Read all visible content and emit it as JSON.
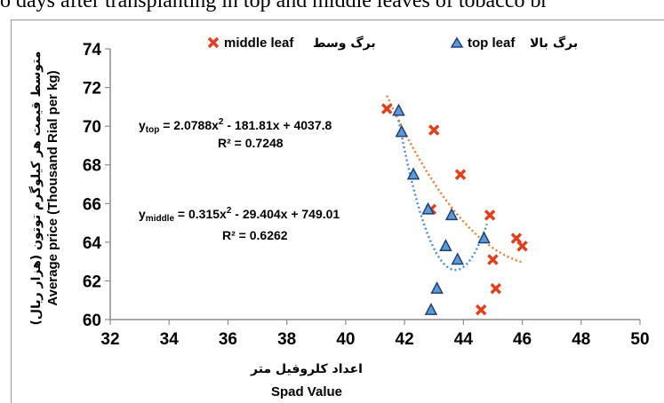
{
  "caption": "o days after transplanting in top and middle leaves of tobacco br",
  "chart_data": {
    "type": "scatter",
    "xlim": [
      32,
      50
    ],
    "ylim": [
      60,
      74
    ],
    "x_ticks": [
      "32",
      "34",
      "36",
      "38",
      "40",
      "42",
      "44",
      "46",
      "48",
      "50"
    ],
    "y_ticks": [
      "60",
      "62",
      "64",
      "66",
      "68",
      "70",
      "72",
      "74"
    ],
    "xlabel_fa": "اعداد کلروفیل متر",
    "xlabel": "Spad Value",
    "ylabel_fa": "متوسط قیمت هر کیلوگرم توتون (هزار ریال)",
    "ylabel": "Average price (Thousand Rial per kg)",
    "grid": false,
    "legend_position": "top",
    "series": [
      {
        "name": "middle leaf",
        "name_fa": "برگ وسط",
        "marker": "x",
        "color": "#e2401c",
        "trend_color": "#ed7d31",
        "trend": {
          "a": 0.315,
          "b": -29.404,
          "c": 749.01,
          "x_range": [
            41.4,
            46.0
          ]
        },
        "points": [
          {
            "x": 41.4,
            "y": 70.9
          },
          {
            "x": 43.0,
            "y": 69.8
          },
          {
            "x": 43.9,
            "y": 67.5
          },
          {
            "x": 42.9,
            "y": 65.7
          },
          {
            "x": 44.9,
            "y": 65.4
          },
          {
            "x": 45.8,
            "y": 64.2
          },
          {
            "x": 46.0,
            "y": 63.8
          },
          {
            "x": 45.0,
            "y": 63.1
          },
          {
            "x": 45.1,
            "y": 61.6
          },
          {
            "x": 44.6,
            "y": 60.5
          }
        ]
      },
      {
        "name": "top leaf",
        "name_fa": "برگ بالا",
        "marker": "triangle",
        "color": "#5b9bd5",
        "trend_color": "#4a90d9",
        "trend": {
          "a": 2.0788,
          "b": -181.81,
          "c": 4037.8,
          "x_range": [
            41.8,
            44.8
          ]
        },
        "points": [
          {
            "x": 41.8,
            "y": 70.8
          },
          {
            "x": 41.9,
            "y": 69.7
          },
          {
            "x": 42.3,
            "y": 67.5
          },
          {
            "x": 42.8,
            "y": 65.7
          },
          {
            "x": 43.6,
            "y": 65.4
          },
          {
            "x": 43.4,
            "y": 63.8
          },
          {
            "x": 43.8,
            "y": 63.1
          },
          {
            "x": 44.7,
            "y": 64.2
          },
          {
            "x": 43.1,
            "y": 61.6
          },
          {
            "x": 42.9,
            "y": 60.5
          }
        ]
      }
    ],
    "annotations": {
      "top_eq": {
        "prefix": "y",
        "sub": "top",
        "body": " = 2.0788x",
        "sup": "2",
        "rest": " - 181.81x + 4037.8"
      },
      "top_r2": "R² = 0.7248",
      "mid_eq": {
        "prefix": "y",
        "sub": "middle",
        "body": " = 0.315x",
        "sup": "2",
        "rest": " - 29.404x + 749.01"
      },
      "mid_r2": "R² = 0.6262"
    }
  }
}
